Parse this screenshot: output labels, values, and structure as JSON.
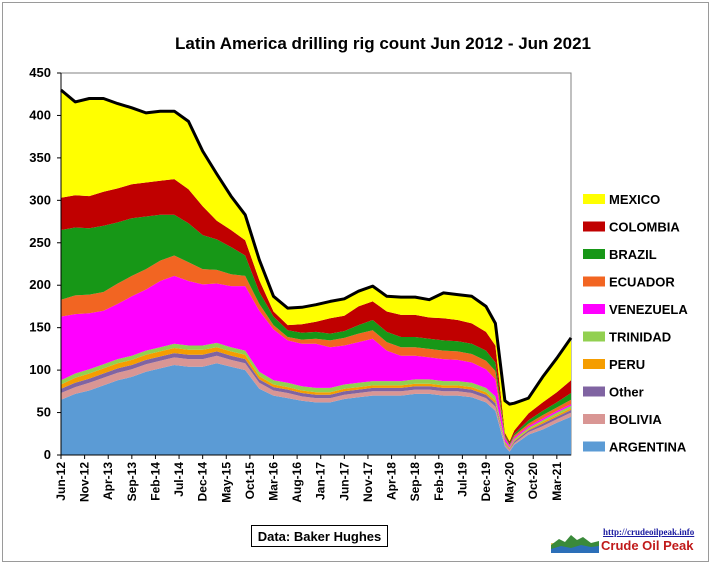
{
  "chart_data": {
    "type": "area",
    "stacked": true,
    "title": "Latin America drilling  rig count Jun 2012 - Jun 2021",
    "ylim": [
      0,
      450
    ],
    "yticks": [
      0,
      50,
      100,
      150,
      200,
      250,
      300,
      350,
      400,
      450
    ],
    "xlabels": [
      "Jun-12",
      "Nov-12",
      "Apr-13",
      "Sep-13",
      "Feb-14",
      "Jul-14",
      "Dec-14",
      "May-15",
      "Oct-15",
      "Mar-16",
      "Aug-16",
      "Jan-17",
      "Jun-17",
      "Nov-17",
      "Apr-18",
      "Sep-18",
      "Feb-19",
      "Jul-19",
      "Dec-19",
      "May-20",
      "Oct-20",
      "Mar-21"
    ],
    "x": [
      "Jun-12",
      "Sep-12",
      "Dec-12",
      "Mar-13",
      "Jun-13",
      "Sep-13",
      "Dec-13",
      "Mar-14",
      "Jun-14",
      "Sep-14",
      "Dec-14",
      "Mar-15",
      "Jun-15",
      "Sep-15",
      "Dec-15",
      "Mar-16",
      "Jun-16",
      "Sep-16",
      "Dec-16",
      "Mar-17",
      "Jun-17",
      "Sep-17",
      "Dec-17",
      "Mar-18",
      "Jun-18",
      "Sep-18",
      "Dec-18",
      "Mar-19",
      "Jun-19",
      "Sep-19",
      "Dec-19",
      "Feb-20",
      "Apr-20",
      "May-20",
      "Jun-20",
      "Sep-20",
      "Dec-20",
      "Mar-21",
      "Jun-21"
    ],
    "grid": false,
    "legend_position": "right",
    "series": [
      {
        "name": "ARGENTINA",
        "color": "#5b9bd5",
        "values": [
          65,
          72,
          76,
          82,
          88,
          92,
          98,
          102,
          106,
          104,
          104,
          108,
          104,
          100,
          78,
          70,
          67,
          64,
          62,
          62,
          66,
          68,
          70,
          70,
          70,
          72,
          72,
          70,
          70,
          68,
          62,
          52,
          10,
          4,
          12,
          24,
          30,
          38,
          45
        ]
      },
      {
        "name": "BOLIVIA",
        "color": "#d99694",
        "values": [
          8,
          8,
          9,
          9,
          9,
          9,
          9,
          9,
          9,
          9,
          9,
          9,
          8,
          8,
          7,
          6,
          6,
          5,
          5,
          5,
          5,
          5,
          5,
          5,
          5,
          5,
          5,
          5,
          5,
          5,
          5,
          5,
          2,
          2,
          2,
          3,
          4,
          4,
          5
        ]
      },
      {
        "name": "Other",
        "color": "#8064a2",
        "values": [
          5,
          5,
          5,
          5,
          5,
          5,
          5,
          5,
          5,
          5,
          5,
          5,
          5,
          5,
          4,
          4,
          4,
          4,
          4,
          4,
          4,
          4,
          4,
          4,
          4,
          4,
          4,
          4,
          4,
          4,
          4,
          4,
          1,
          1,
          2,
          2,
          3,
          3,
          3
        ]
      },
      {
        "name": "PERU",
        "color": "#f59d00",
        "values": [
          5,
          6,
          6,
          6,
          6,
          6,
          6,
          6,
          6,
          6,
          6,
          5,
          5,
          5,
          4,
          3,
          3,
          3,
          3,
          3,
          3,
          3,
          3,
          3,
          3,
          3,
          3,
          3,
          3,
          3,
          3,
          3,
          1,
          1,
          1,
          1,
          2,
          2,
          2
        ]
      },
      {
        "name": "TRINIDAD",
        "color": "#92d050",
        "values": [
          5,
          5,
          5,
          5,
          5,
          5,
          5,
          5,
          5,
          5,
          5,
          5,
          5,
          5,
          5,
          5,
          5,
          5,
          5,
          5,
          5,
          5,
          5,
          5,
          5,
          5,
          5,
          5,
          5,
          5,
          5,
          5,
          2,
          1,
          2,
          2,
          2,
          3,
          3
        ]
      },
      {
        "name": "VENEZUELA",
        "color": "#ff00ff",
        "values": [
          75,
          70,
          66,
          63,
          65,
          70,
          72,
          78,
          80,
          76,
          72,
          70,
          72,
          76,
          72,
          60,
          50,
          50,
          52,
          48,
          46,
          48,
          50,
          36,
          30,
          28,
          26,
          26,
          25,
          24,
          22,
          20,
          4,
          2,
          2,
          2,
          2,
          2,
          2
        ]
      },
      {
        "name": "ECUADOR",
        "color": "#f26522",
        "values": [
          20,
          22,
          22,
          22,
          24,
          24,
          24,
          24,
          24,
          22,
          18,
          16,
          14,
          12,
          8,
          5,
          4,
          5,
          6,
          8,
          9,
          10,
          10,
          10,
          10,
          10,
          10,
          10,
          10,
          10,
          10,
          10,
          2,
          1,
          2,
          3,
          4,
          4,
          5
        ]
      },
      {
        "name": "BRAZIL",
        "color": "#179717",
        "values": [
          82,
          80,
          78,
          78,
          72,
          68,
          62,
          54,
          48,
          46,
          40,
          36,
          32,
          24,
          14,
          10,
          8,
          8,
          8,
          8,
          8,
          10,
          12,
          12,
          12,
          12,
          12,
          12,
          12,
          12,
          12,
          10,
          2,
          2,
          2,
          4,
          5,
          6,
          8
        ]
      },
      {
        "name": "COLOMBIA",
        "color": "#c00000",
        "values": [
          38,
          38,
          38,
          40,
          40,
          40,
          40,
          40,
          42,
          40,
          34,
          22,
          20,
          18,
          14,
          6,
          6,
          10,
          12,
          18,
          18,
          22,
          22,
          24,
          26,
          26,
          25,
          26,
          25,
          24,
          22,
          20,
          2,
          2,
          4,
          8,
          10,
          12,
          15
        ]
      },
      {
        "name": "MEXICO",
        "color": "#ffff00",
        "values": [
          127,
          110,
          115,
          110,
          100,
          90,
          82,
          82,
          80,
          80,
          65,
          55,
          40,
          30,
          24,
          18,
          20,
          20,
          20,
          20,
          20,
          18,
          18,
          18,
          21,
          21,
          21,
          30,
          30,
          32,
          30,
          26,
          38,
          44,
          32,
          18,
          30,
          40,
          50
        ]
      }
    ]
  },
  "legend_order": [
    "MEXICO",
    "COLOMBIA",
    "BRAZIL",
    "ECUADOR",
    "VENEZUELA",
    "TRINIDAD",
    "PERU",
    "Other",
    "BOLIVIA",
    "ARGENTINA"
  ],
  "source": "Data: Baker Hughes",
  "logo": {
    "url": "http://crudeoilpeak.info",
    "name": "Crude Oil Peak"
  }
}
